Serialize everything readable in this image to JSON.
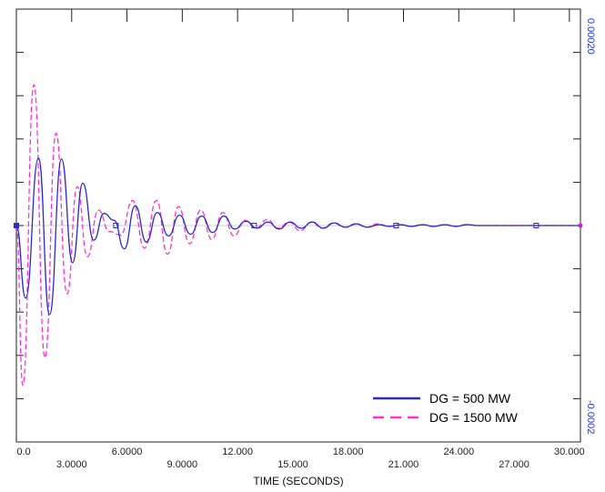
{
  "chart_data": {
    "type": "line",
    "xlabel": "TIME (SECONDS)",
    "xlim": [
      0,
      30.6
    ],
    "ylim": [
      -0.0002,
      0.0002
    ],
    "x_ticks_top": [
      "0.0",
      "6.0000",
      "12.000",
      "18.000",
      "24.000",
      "30.000"
    ],
    "x_ticks_bottom": [
      "3.0000",
      "9.0000",
      "15.000",
      "21.000",
      "27.000"
    ],
    "x_ticks_top_values": [
      0,
      6,
      12,
      18,
      24,
      30
    ],
    "x_ticks_bottom_values": [
      3,
      9,
      15,
      21,
      27
    ],
    "y_right_labels": [
      {
        "text": "0.00020",
        "value": 0.0002
      },
      {
        "text": "-0.0002",
        "value": -0.0002
      }
    ],
    "grid": false,
    "legend_position": "bottom-right",
    "series": [
      {
        "name": "DG = 500 MW",
        "color": "#2a2acc",
        "style": "solid",
        "x": [
          0,
          0.5,
          1.2,
          1.8,
          2.45,
          3.05,
          3.6,
          4.2,
          4.75,
          5.3,
          5.85,
          6.45,
          7.05,
          7.65,
          8.25,
          8.85,
          9.45,
          10.05,
          10.65,
          11.25,
          11.85,
          12.45,
          13.05,
          13.65,
          14.25,
          14.85,
          15.45,
          16.05,
          16.65,
          17.25,
          17.85,
          18.45,
          19.05,
          19.65,
          20.25,
          20.85,
          21.45,
          22.05,
          22.65,
          23.25,
          23.85,
          24.45,
          25.05,
          25.65,
          26.25,
          26.85,
          27.45,
          28.05,
          28.65,
          29.25,
          29.85,
          30.6
        ],
        "y": [
          0,
          -8.4e-05,
          7.8e-05,
          -0.000103,
          7.7e-05,
          -4.3e-05,
          4.9e-05,
          -1.7e-05,
          1.4e-05,
          6e-06,
          -2.7e-05,
          2.3e-05,
          -1.9e-05,
          1.5e-05,
          -1.2e-05,
          1.2e-05,
          -1e-05,
          1.1e-05,
          -8e-06,
          1.1e-05,
          -4e-06,
          5e-06,
          -3e-06,
          4e-06,
          -4e-06,
          4e-06,
          -3e-06,
          4e-06,
          -3e-06,
          3e-06,
          -2e-06,
          2e-06,
          -2e-06,
          1e-06,
          -1e-06,
          1e-06,
          -1e-06,
          1e-06,
          -1e-06,
          1e-06,
          -1e-06,
          1e-06,
          0,
          0,
          0,
          0,
          0,
          0,
          0,
          0,
          0,
          0
        ]
      },
      {
        "name": "DG = 1500 MW",
        "color": "#ff33cc",
        "style": "dashed",
        "x": [
          0,
          0.35,
          0.95,
          1.55,
          2.15,
          2.75,
          3.3,
          3.85,
          4.45,
          5.05,
          5.65,
          6.3,
          6.95,
          7.6,
          8.2,
          8.8,
          9.4,
          10.0,
          10.6,
          11.2,
          11.8,
          12.4,
          13.0,
          13.6,
          14.2,
          14.8,
          15.4,
          16.0,
          16.6,
          17.2,
          17.8,
          18.4,
          19.0,
          19.6,
          20.2,
          20.8,
          21.4,
          22.0,
          22.6,
          23.2,
          23.8,
          24.4,
          25.0,
          25.6,
          26.2,
          26.8,
          27.4,
          28.0,
          28.6,
          29.2,
          29.8,
          30.6
        ],
        "y": [
          0,
          -0.000185,
          0.000163,
          -0.000153,
          0.000107,
          -7.9e-05,
          4.5e-05,
          -3.6e-05,
          1.8e-05,
          -7e-06,
          -1.1e-05,
          2.9e-05,
          -2.6e-05,
          2.9e-05,
          -3.3e-05,
          2.2e-05,
          -2.1e-05,
          1.8e-05,
          -1.6e-05,
          1.5e-05,
          -1.2e-05,
          6e-06,
          -3e-06,
          7e-06,
          -3e-06,
          4e-06,
          -6e-06,
          4e-06,
          -3e-06,
          3e-06,
          -2e-06,
          2e-06,
          -2e-06,
          2e-06,
          -1e-06,
          1e-06,
          -1e-06,
          1e-06,
          -1e-06,
          1e-06,
          -1e-06,
          1e-06,
          0,
          0,
          0,
          0,
          0,
          0,
          0,
          0,
          0,
          0
        ]
      }
    ]
  }
}
